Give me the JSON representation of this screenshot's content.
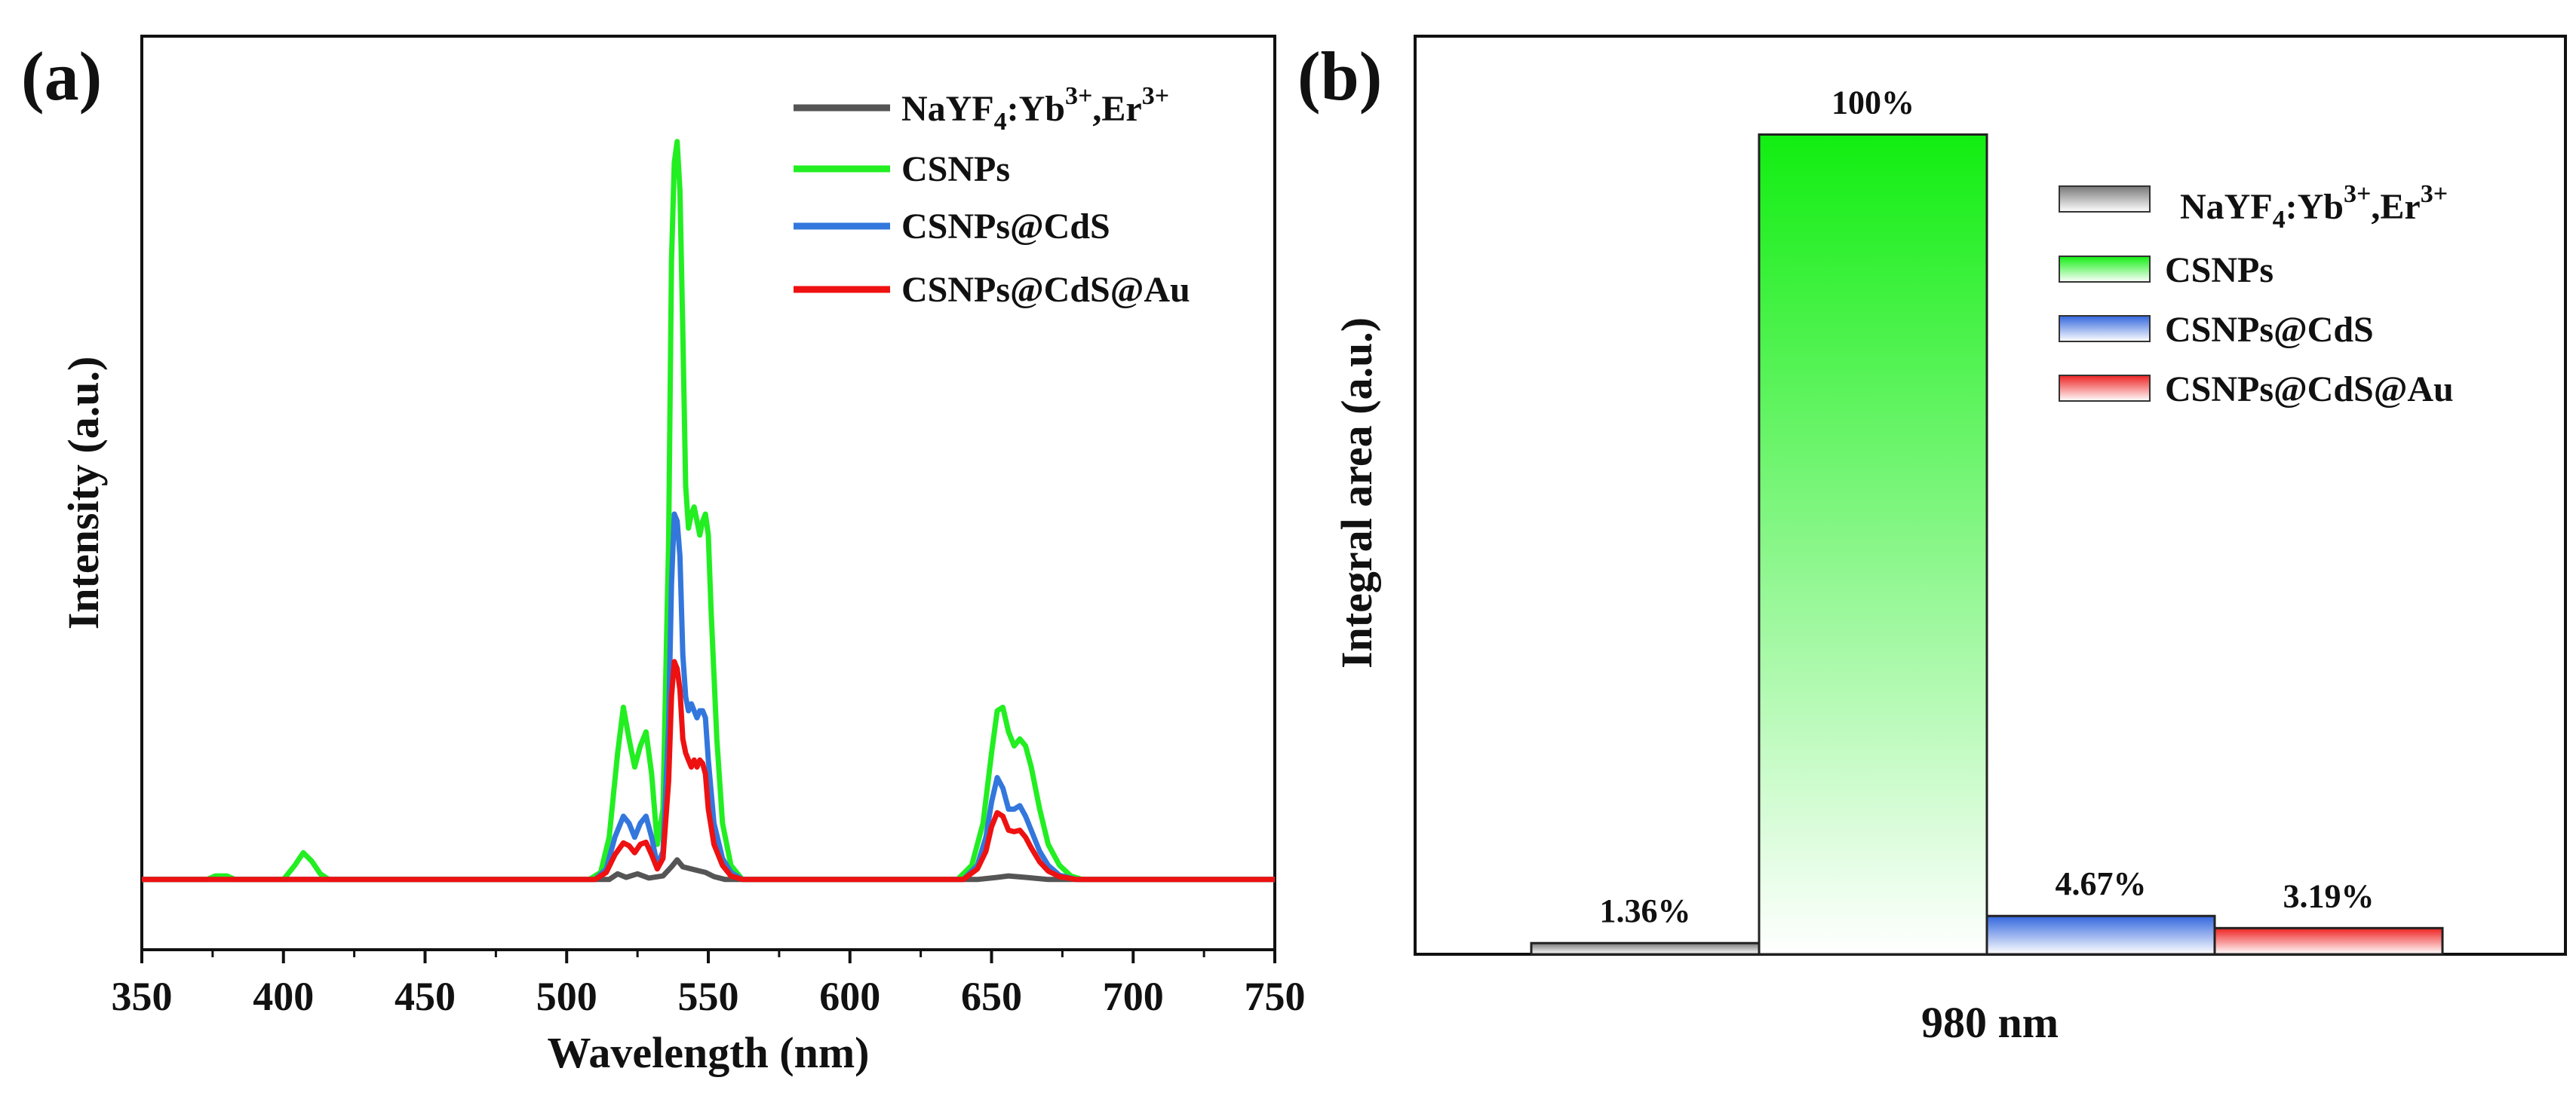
{
  "panel_a_label": "(a)",
  "panel_b_label": "(b)",
  "chart_data": [
    {
      "type": "line",
      "xlabel": "Wavelength (nm)",
      "ylabel": "Intensity (a.u.)",
      "xlim": [
        350,
        750
      ],
      "ylim": [
        -10,
        120
      ],
      "xticks": [
        350,
        400,
        450,
        500,
        550,
        600,
        650,
        700,
        750
      ],
      "xtick_labels": [
        "350",
        "400",
        "450",
        "500",
        "550",
        "600",
        "650",
        "700",
        "750"
      ],
      "ytick_labels_visible": false,
      "legend_position": "top-right",
      "series": [
        {
          "name": "NaYF4:Yb3+,Er3+",
          "legend_main": "NaYF",
          "legend_sub": "4",
          "legend_mid": ":Yb",
          "legend_sup1": "3+",
          "legend_mid2": ",Er",
          "legend_sup2": "3+",
          "color": "#555555",
          "points": [
            [
              350,
              0
            ],
            [
              515,
              0
            ],
            [
              518,
              0.8
            ],
            [
              521,
              0.3
            ],
            [
              525,
              0.8
            ],
            [
              529,
              0.2
            ],
            [
              534,
              0.5
            ],
            [
              537,
              1.8
            ],
            [
              539,
              2.8
            ],
            [
              541,
              1.8
            ],
            [
              544,
              1.5
            ],
            [
              547,
              1.2
            ],
            [
              549,
              1.0
            ],
            [
              552,
              0.4
            ],
            [
              556,
              0
            ],
            [
              645,
              0
            ],
            [
              652,
              0.3
            ],
            [
              656,
              0.5
            ],
            [
              662,
              0.3
            ],
            [
              670,
              0
            ],
            [
              750,
              0
            ]
          ]
        },
        {
          "name": "CSNPs",
          "color": "#22ee22",
          "points": [
            [
              350,
              0
            ],
            [
              373,
              0
            ],
            [
              376,
              0.5
            ],
            [
              380,
              0.5
            ],
            [
              383,
              0
            ],
            [
              400,
              0
            ],
            [
              404,
              2
            ],
            [
              407,
              3.8
            ],
            [
              410,
              2.6
            ],
            [
              413,
              0.8
            ],
            [
              416,
              0
            ],
            [
              508,
              0
            ],
            [
              512,
              1
            ],
            [
              515,
              6
            ],
            [
              518,
              18
            ],
            [
              520,
              24.5
            ],
            [
              522,
              20
            ],
            [
              524,
              16
            ],
            [
              526,
              19
            ],
            [
              528,
              21
            ],
            [
              530,
              15
            ],
            [
              532,
              5
            ],
            [
              534,
              10
            ],
            [
              536,
              48
            ],
            [
              537,
              88
            ],
            [
              538,
              102
            ],
            [
              539,
              105
            ],
            [
              540,
              98
            ],
            [
              541,
              78
            ],
            [
              542,
              56
            ],
            [
              543,
              50
            ],
            [
              544,
              52
            ],
            [
              545,
              53
            ],
            [
              546,
              51
            ],
            [
              547,
              49
            ],
            [
              548,
              51
            ],
            [
              549,
              52
            ],
            [
              550,
              49
            ],
            [
              551,
              38
            ],
            [
              553,
              20
            ],
            [
              555,
              8
            ],
            [
              558,
              2
            ],
            [
              562,
              0
            ],
            [
              638,
              0
            ],
            [
              643,
              2
            ],
            [
              647,
              8
            ],
            [
              650,
              18
            ],
            [
              652,
              24
            ],
            [
              654,
              24.5
            ],
            [
              656,
              21
            ],
            [
              658,
              19
            ],
            [
              660,
              20
            ],
            [
              662,
              19
            ],
            [
              664,
              16
            ],
            [
              667,
              10
            ],
            [
              670,
              5
            ],
            [
              674,
              2
            ],
            [
              678,
              0.5
            ],
            [
              682,
              0
            ],
            [
              750,
              0
            ]
          ]
        },
        {
          "name": "CSNPs@CdS",
          "color": "#3377dd",
          "points": [
            [
              350,
              0
            ],
            [
              510,
              0
            ],
            [
              514,
              1.5
            ],
            [
              517,
              6
            ],
            [
              520,
              9
            ],
            [
              522,
              8
            ],
            [
              524,
              6
            ],
            [
              526,
              8
            ],
            [
              528,
              9
            ],
            [
              530,
              6
            ],
            [
              532,
              2
            ],
            [
              534,
              4
            ],
            [
              536,
              22
            ],
            [
              537,
              42
            ],
            [
              538,
              52
            ],
            [
              539,
              51
            ],
            [
              540,
              46
            ],
            [
              541,
              32
            ],
            [
              542,
              26
            ],
            [
              543,
              24
            ],
            [
              544,
              25
            ],
            [
              545,
              24
            ],
            [
              546,
              23
            ],
            [
              547,
              24
            ],
            [
              548,
              24
            ],
            [
              549,
              23
            ],
            [
              550,
              17
            ],
            [
              552,
              8
            ],
            [
              555,
              3
            ],
            [
              558,
              1
            ],
            [
              562,
              0
            ],
            [
              640,
              0
            ],
            [
              645,
              2
            ],
            [
              648,
              6
            ],
            [
              650,
              11
            ],
            [
              652,
              14.5
            ],
            [
              654,
              13
            ],
            [
              656,
              10
            ],
            [
              658,
              10
            ],
            [
              660,
              10.5
            ],
            [
              662,
              9
            ],
            [
              664,
              7
            ],
            [
              667,
              4
            ],
            [
              670,
              2
            ],
            [
              674,
              0.6
            ],
            [
              680,
              0
            ],
            [
              750,
              0
            ]
          ]
        },
        {
          "name": "CSNPs@CdS@Au",
          "color": "#ee1111",
          "points": [
            [
              350,
              0
            ],
            [
              510,
              0
            ],
            [
              514,
              1
            ],
            [
              517,
              3.5
            ],
            [
              520,
              5.2
            ],
            [
              522,
              4.8
            ],
            [
              524,
              3.8
            ],
            [
              526,
              5
            ],
            [
              528,
              5.3
            ],
            [
              530,
              3.5
            ],
            [
              532,
              1.5
            ],
            [
              534,
              3
            ],
            [
              536,
              14
            ],
            [
              537,
              26
            ],
            [
              538,
              31
            ],
            [
              539,
              30
            ],
            [
              540,
              27
            ],
            [
              541,
              20
            ],
            [
              542,
              18
            ],
            [
              543,
              17
            ],
            [
              544,
              16
            ],
            [
              545,
              17
            ],
            [
              546,
              16
            ],
            [
              547,
              17
            ],
            [
              548,
              16.5
            ],
            [
              549,
              15
            ],
            [
              550,
              10
            ],
            [
              552,
              5
            ],
            [
              555,
              2
            ],
            [
              558,
              0.5
            ],
            [
              562,
              0
            ],
            [
              640,
              0
            ],
            [
              645,
              1.5
            ],
            [
              648,
              4
            ],
            [
              650,
              7.5
            ],
            [
              652,
              9.5
            ],
            [
              654,
              9
            ],
            [
              656,
              7
            ],
            [
              658,
              6.8
            ],
            [
              660,
              7
            ],
            [
              662,
              6
            ],
            [
              664,
              4.5
            ],
            [
              667,
              2.5
            ],
            [
              670,
              1.2
            ],
            [
              674,
              0.4
            ],
            [
              680,
              0
            ],
            [
              750,
              0
            ]
          ]
        }
      ]
    },
    {
      "type": "bar",
      "xlabel": "980 nm",
      "ylabel": "Integral area (a.u.)",
      "ylim": [
        0,
        112
      ],
      "ytick_labels_visible": false,
      "legend_position": "top-right",
      "categories": [
        "NaYF4:Yb3+,Er3+",
        "CSNPs",
        "CSNPs@CdS",
        "CSNPs@CdS@Au"
      ],
      "values": [
        1.36,
        100,
        4.67,
        3.19
      ],
      "value_labels": [
        "1.36%",
        "100%",
        "4.67%",
        "3.19%"
      ],
      "colors": [
        "#888888",
        "#11ee11",
        "#3366dd",
        "#ee2222"
      ],
      "legend": [
        {
          "label": "NaYF4:Yb3+,Er3+",
          "main": "NaYF",
          "sub": "4",
          "mid": ":Yb",
          "sup1": "3+",
          "mid2": ",Er",
          "sup2": "3+",
          "color": "#777777"
        },
        {
          "label": "CSNPs",
          "color": "#22ee22"
        },
        {
          "label": "CSNPs@CdS",
          "color": "#3366dd"
        },
        {
          "label": "CSNPs@CdS@Au",
          "color": "#ee2222"
        }
      ]
    }
  ]
}
